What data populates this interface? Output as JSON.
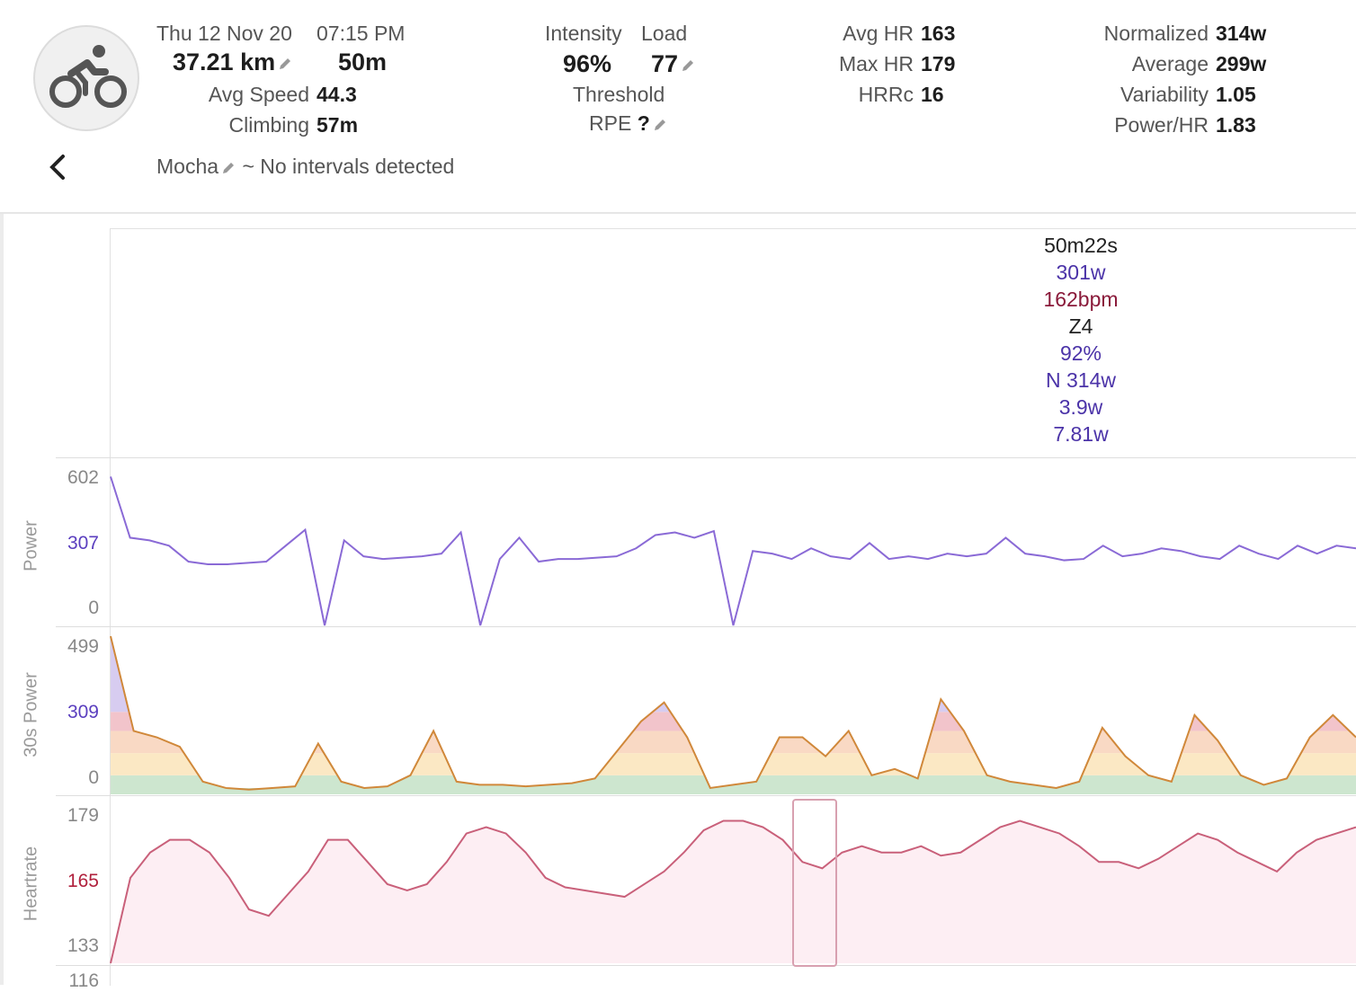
{
  "activity": {
    "date": "Thu 12 Nov 20",
    "time": "07:15 PM",
    "distance": "37.21 km",
    "duration": "50m",
    "avg_speed_label": "Avg Speed",
    "avg_speed": "44.3",
    "climbing_label": "Climbing",
    "climbing": "57m",
    "name": "Mocha",
    "intervals_text": "~ No intervals detected",
    "sport_icon": "bike-icon"
  },
  "load": {
    "intensity_label": "Intensity",
    "intensity": "96%",
    "load_label": "Load",
    "load": "77",
    "threshold_label": "Threshold",
    "rpe_label": "RPE",
    "rpe": "?"
  },
  "hr": {
    "avg_label": "Avg HR",
    "avg": "163",
    "max_label": "Max HR",
    "max": "179",
    "hrrc_label": "HRRc",
    "hrrc": "16"
  },
  "power": {
    "normalized_label": "Normalized",
    "normalized": "314w",
    "average_label": "Average",
    "average": "299w",
    "variability_label": "Variability",
    "variability": "1.05",
    "power_hr_label": "Power/HR",
    "power_hr": "1.83"
  },
  "tooltip": {
    "time": "50m22s",
    "power": "301w",
    "hr": "162bpm",
    "zone": "Z4",
    "pct": "92%",
    "normalized": "N 314w",
    "v1": "3.9w",
    "v2": "7.81w"
  },
  "colors": {
    "power": "#8a6ad6",
    "power_label": "#5b3fbf",
    "hr": "#c9607a",
    "hr_label": "#b0203c",
    "hr_fill": "#fdeef3"
  },
  "charts": {
    "power": {
      "name": "Power",
      "ticks": [
        "602",
        "307",
        "0"
      ]
    },
    "power30": {
      "name": "30s Power",
      "ticks": [
        "499",
        "309",
        "0"
      ]
    },
    "heartrate": {
      "name": "Heartrate",
      "ticks": [
        "179",
        "165",
        "133"
      ]
    },
    "next_tick": "116"
  },
  "chart_data": [
    {
      "type": "line",
      "series": [
        {
          "name": "Power",
          "values": [
            560,
            330,
            320,
            300,
            240,
            230,
            230,
            235,
            240,
            300,
            360,
            0,
            320,
            260,
            250,
            255,
            260,
            270,
            350,
            0,
            250,
            330,
            240,
            250,
            250,
            255,
            260,
            290,
            340,
            350,
            330,
            355,
            0,
            280,
            270,
            250,
            290,
            260,
            250,
            310,
            250,
            260,
            250,
            270,
            260,
            270,
            330,
            270,
            260,
            245,
            250,
            300,
            260,
            270,
            290,
            280,
            260,
            250,
            300,
            270,
            250,
            300,
            270,
            300,
            290
          ]
        }
      ],
      "ylim": [
        0,
        602
      ],
      "ylabel": "Power"
    },
    {
      "type": "area",
      "series": [
        {
          "name": "30s Power",
          "values": [
            499,
            200,
            180,
            150,
            40,
            20,
            15,
            20,
            25,
            160,
            40,
            20,
            25,
            60,
            200,
            40,
            30,
            30,
            25,
            30,
            35,
            50,
            140,
            230,
            290,
            180,
            20,
            30,
            40,
            180,
            180,
            120,
            200,
            60,
            80,
            50,
            300,
            200,
            60,
            40,
            30,
            20,
            40,
            210,
            120,
            60,
            40,
            250,
            170,
            60,
            30,
            50,
            180,
            250,
            180
          ]
        }
      ],
      "ylim": [
        0,
        499
      ],
      "ylabel": "30s Power"
    },
    {
      "type": "area",
      "series": [
        {
          "name": "Heartrate",
          "values": [
            133,
            160,
            168,
            172,
            172,
            168,
            160,
            150,
            148,
            155,
            162,
            172,
            172,
            165,
            158,
            156,
            158,
            165,
            174,
            176,
            174,
            168,
            160,
            157,
            156,
            155,
            154,
            158,
            162,
            168,
            175,
            178,
            178,
            176,
            172,
            165,
            163,
            168,
            170,
            168,
            168,
            170,
            167,
            168,
            172,
            176,
            178,
            176,
            174,
            170,
            165,
            165,
            163,
            166,
            170,
            174,
            172,
            168,
            165,
            162,
            168,
            172,
            174,
            176
          ]
        }
      ],
      "ylim": [
        133,
        179
      ],
      "ylabel": "Heartrate"
    }
  ]
}
